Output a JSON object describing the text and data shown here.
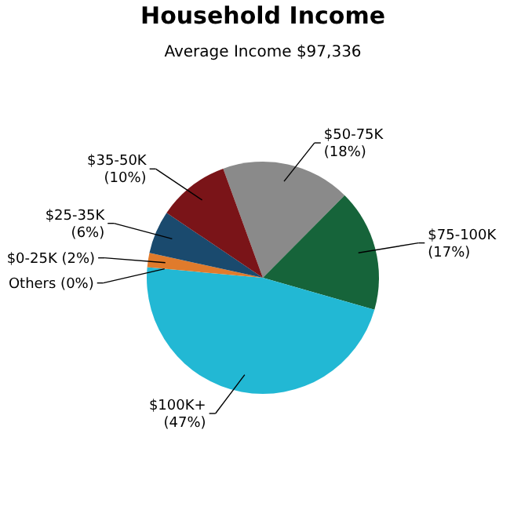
{
  "chart_data": {
    "type": "pie",
    "title": "Household Income",
    "subtitle": "Average Income  $97,336",
    "categories": [
      "$50-75K",
      "$75-100K",
      "$100K+",
      "Others",
      "$0-25K",
      "$25-35K",
      "$35-50K"
    ],
    "values": [
      18,
      17,
      47,
      0,
      2,
      6,
      10
    ],
    "colors": [
      "#8a8a8a",
      "#16643a",
      "#22b8d4",
      "#d9d9d9",
      "#e07b2c",
      "#1a4a6e",
      "#7a1418"
    ],
    "value_labels": [
      "(18%)",
      "(17%)",
      "(47%)",
      "(0%)",
      "(2%)",
      "(6%)",
      "(10%)"
    ]
  }
}
